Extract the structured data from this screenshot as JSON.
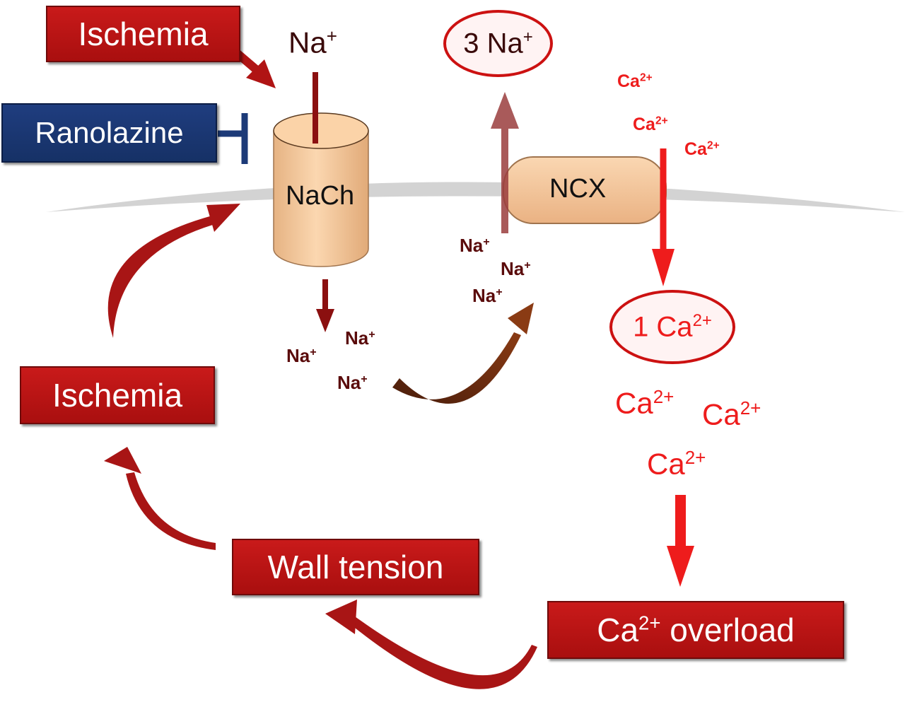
{
  "boxes": {
    "ischemia_top": "Ischemia",
    "ranolazine": "Ranolazine",
    "ischemia_left": "Ischemia",
    "wall_tension": "Wall tension",
    "ca_overload_prefix": "Ca",
    "ca_overload_charge": "2+",
    "ca_overload_suffix": " overload"
  },
  "channels": {
    "nach": "NaCh",
    "ncx": "NCX"
  },
  "ions": {
    "na_symbol": "Na",
    "na_charge": "+",
    "ca_symbol": "Ca",
    "ca_charge": "2+",
    "three_na_prefix": "3 Na",
    "one_ca_prefix": "1 Ca"
  },
  "colors": {
    "box_red": "#b51414",
    "box_blue": "#1c3a78",
    "dark_arrow": "#8b1010",
    "ca_red": "#ee1c1c",
    "membrane": "#d3d3d3",
    "channel_fill": "#f5c99a"
  }
}
